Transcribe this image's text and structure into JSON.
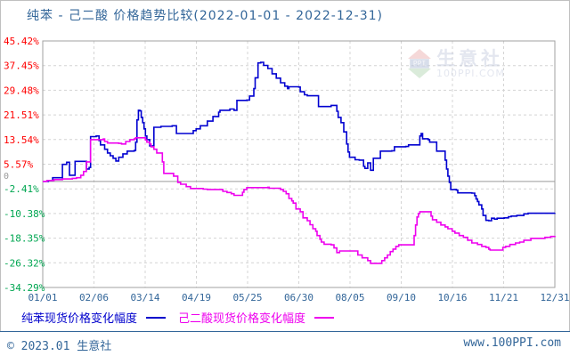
{
  "title": "纯苯 - 己二酸 价格趋势比较(2022-01-01 - 2022-12-31)",
  "watermark": {
    "logo_text": "PPI",
    "name": "生意社",
    "site": "100PPI.COM"
  },
  "legend": [
    {
      "label": "纯苯现货价格变化幅度",
      "color": "#0000cc"
    },
    {
      "label": "己二酸现货价格变化幅度",
      "color": "#ee00ee"
    }
  ],
  "footer": {
    "left": "© 2023.01 生意社",
    "right": "www.100PPI.com"
  },
  "chart_data": {
    "type": "line",
    "interpolation": "step-after",
    "title": "纯苯 - 己二酸 价格趋势比较(2022-01-01 - 2022-12-31)",
    "x_unit": "day-of-year-2022",
    "x_range": [
      1,
      365
    ],
    "ylim": [
      -34.29,
      45.42
    ],
    "grid": true,
    "zero_line": true,
    "zero_label": "0",
    "x_tick_labels": [
      "01/01",
      "02/06",
      "03/14",
      "04/19",
      "05/25",
      "06/30",
      "08/05",
      "09/10",
      "10/16",
      "11/21",
      "12/31"
    ],
    "y_ticks": [
      {
        "label": "45.42%",
        "value": 45.42,
        "color": "#ff0000"
      },
      {
        "label": "37.45%",
        "value": 37.45,
        "color": "#ff0000"
      },
      {
        "label": "29.48%",
        "value": 29.48,
        "color": "#ff0000"
      },
      {
        "label": "21.51%",
        "value": 21.51,
        "color": "#ff0000"
      },
      {
        "label": "13.54%",
        "value": 13.54,
        "color": "#ff0000"
      },
      {
        "label": "5.57%",
        "value": 5.57,
        "color": "#ff0000"
      },
      {
        "label": "-2.41%",
        "value": -2.41,
        "color": "#00a651"
      },
      {
        "label": "-10.38%",
        "value": -10.38,
        "color": "#00a651"
      },
      {
        "label": "-18.35%",
        "value": -18.35,
        "color": "#00a651"
      },
      {
        "label": "-26.32%",
        "value": -26.32,
        "color": "#00a651"
      },
      {
        "label": "-34.29%",
        "value": -34.29,
        "color": "#00a651"
      }
    ],
    "series": [
      {
        "name": "纯苯现货价格变化幅度",
        "color": "#0000d0",
        "points": [
          [
            1,
            0
          ],
          [
            5,
            0.3
          ],
          [
            8,
            1.2
          ],
          [
            13,
            1.2
          ],
          [
            15,
            5.5
          ],
          [
            18,
            6.2
          ],
          [
            20,
            2.0
          ],
          [
            24,
            6.5
          ],
          [
            30,
            6.5
          ],
          [
            32,
            4.0
          ],
          [
            34,
            4.5
          ],
          [
            35,
            14.5
          ],
          [
            39,
            14.7
          ],
          [
            41,
            13.2
          ],
          [
            42,
            11.8
          ],
          [
            45,
            10.4
          ],
          [
            47,
            9.2
          ],
          [
            49,
            8.3
          ],
          [
            51,
            7.5
          ],
          [
            53,
            6.6
          ],
          [
            55,
            7.8
          ],
          [
            58,
            8.9
          ],
          [
            61,
            9.8
          ],
          [
            66,
            10.0
          ],
          [
            67,
            12.7
          ],
          [
            68,
            19.9
          ],
          [
            69,
            23.0
          ],
          [
            70,
            22.8
          ],
          [
            71,
            20.7
          ],
          [
            72,
            19.0
          ],
          [
            73,
            17.0
          ],
          [
            74,
            14.7
          ],
          [
            75,
            13.5
          ],
          [
            77,
            11.5
          ],
          [
            80,
            17.5
          ],
          [
            85,
            17.8
          ],
          [
            93,
            18.0
          ],
          [
            96,
            15.5
          ],
          [
            105,
            15.5
          ],
          [
            108,
            16.4
          ],
          [
            110,
            17.0
          ],
          [
            113,
            18.0
          ],
          [
            118,
            19.5
          ],
          [
            122,
            21.0
          ],
          [
            126,
            22.4
          ],
          [
            127,
            23.0
          ],
          [
            134,
            23.4
          ],
          [
            137,
            23.0
          ],
          [
            139,
            26.2
          ],
          [
            146,
            26.3
          ],
          [
            148,
            27.6
          ],
          [
            151,
            30.0
          ],
          [
            152,
            33.5
          ],
          [
            154,
            38.3
          ],
          [
            156,
            38.5
          ],
          [
            158,
            37.5
          ],
          [
            161,
            36.5
          ],
          [
            164,
            34.8
          ],
          [
            167,
            33.4
          ],
          [
            170,
            31.9
          ],
          [
            173,
            30.8
          ],
          [
            175,
            30.0
          ],
          [
            176,
            30.6
          ],
          [
            183,
            30.5
          ],
          [
            184,
            29.0
          ],
          [
            187,
            28.0
          ],
          [
            189,
            27.7
          ],
          [
            196,
            27.7
          ],
          [
            197,
            24.2
          ],
          [
            205,
            24.2
          ],
          [
            206,
            24.6
          ],
          [
            210,
            22.7
          ],
          [
            211,
            20.7
          ],
          [
            213,
            19.0
          ],
          [
            215,
            16.0
          ],
          [
            217,
            12.1
          ],
          [
            218,
            9.5
          ],
          [
            219,
            7.8
          ],
          [
            223,
            7.0
          ],
          [
            226,
            6.9
          ],
          [
            229,
            4.9
          ],
          [
            230,
            4.2
          ],
          [
            232,
            6.0
          ],
          [
            234,
            3.6
          ],
          [
            236,
            7.5
          ],
          [
            240,
            7.5
          ],
          [
            241,
            9.8
          ],
          [
            249,
            9.9
          ],
          [
            251,
            11.2
          ],
          [
            259,
            11.3
          ],
          [
            261,
            11.8
          ],
          [
            268,
            11.8
          ],
          [
            269,
            14.7
          ],
          [
            270,
            15.5
          ],
          [
            271,
            13.8
          ],
          [
            275,
            13.5
          ],
          [
            276,
            12.7
          ],
          [
            280,
            12.7
          ],
          [
            281,
            9.8
          ],
          [
            285,
            9.8
          ],
          [
            287,
            6.9
          ],
          [
            288,
            4.0
          ],
          [
            289,
            1.7
          ],
          [
            290,
            -0.3
          ],
          [
            291,
            -2.6
          ],
          [
            295,
            -2.8
          ],
          [
            296,
            -3.7
          ],
          [
            306,
            -3.8
          ],
          [
            308,
            -4.6
          ],
          [
            309,
            -5.7
          ],
          [
            310,
            -6.5
          ],
          [
            311,
            -7.6
          ],
          [
            313,
            -8.9
          ],
          [
            314,
            -11.0
          ],
          [
            316,
            -12.6
          ],
          [
            318,
            -12.7
          ],
          [
            320,
            -11.9
          ],
          [
            322,
            -12.2
          ],
          [
            324,
            -11.9
          ],
          [
            329,
            -11.8
          ],
          [
            332,
            -11.4
          ],
          [
            334,
            -11.2
          ],
          [
            338,
            -11.0
          ],
          [
            343,
            -10.5
          ],
          [
            346,
            -10.3
          ],
          [
            365,
            -10.2
          ]
        ]
      },
      {
        "name": "己二酸现货价格变化幅度",
        "color": "#ee00ee",
        "points": [
          [
            1,
            0
          ],
          [
            4,
            0.3
          ],
          [
            9,
            0.6
          ],
          [
            15,
            0.8
          ],
          [
            22,
            1.0
          ],
          [
            25,
            1.2
          ],
          [
            28,
            2.0
          ],
          [
            30,
            3.2
          ],
          [
            32,
            6.3
          ],
          [
            35,
            13.5
          ],
          [
            44,
            13.7
          ],
          [
            45,
            12.9
          ],
          [
            47,
            12.4
          ],
          [
            55,
            12.3
          ],
          [
            57,
            12.1
          ],
          [
            60,
            12.9
          ],
          [
            63,
            13.5
          ],
          [
            66,
            13.8
          ],
          [
            67,
            14.1
          ],
          [
            73,
            14.1
          ],
          [
            74,
            13.4
          ],
          [
            75,
            12.7
          ],
          [
            77,
            12.1
          ],
          [
            78,
            11.2
          ],
          [
            80,
            10.4
          ],
          [
            82,
            9.2
          ],
          [
            86,
            6.3
          ],
          [
            87,
            2.6
          ],
          [
            94,
            1.7
          ],
          [
            97,
            -0.3
          ],
          [
            99,
            -0.9
          ],
          [
            103,
            -1.7
          ],
          [
            106,
            -2.3
          ],
          [
            115,
            -2.5
          ],
          [
            118,
            -2.6
          ],
          [
            129,
            -3.2
          ],
          [
            132,
            -3.6
          ],
          [
            135,
            -4.0
          ],
          [
            137,
            -4.5
          ],
          [
            142,
            -4.5
          ],
          [
            143,
            -3.5
          ],
          [
            144,
            -2.6
          ],
          [
            146,
            -2.0
          ],
          [
            161,
            -1.9
          ],
          [
            162,
            -2.2
          ],
          [
            169,
            -2.2
          ],
          [
            170,
            -2.6
          ],
          [
            172,
            -3.2
          ],
          [
            174,
            -4.0
          ],
          [
            176,
            -5.5
          ],
          [
            178,
            -6.3
          ],
          [
            179,
            -7.0
          ],
          [
            181,
            -8.9
          ],
          [
            184,
            -9.8
          ],
          [
            186,
            -11.8
          ],
          [
            189,
            -12.7
          ],
          [
            191,
            -14.0
          ],
          [
            193,
            -15.3
          ],
          [
            195,
            -16.1
          ],
          [
            196,
            -17.5
          ],
          [
            198,
            -18.7
          ],
          [
            199,
            -19.6
          ],
          [
            201,
            -20.3
          ],
          [
            206,
            -20.5
          ],
          [
            208,
            -21.5
          ],
          [
            210,
            -23.0
          ],
          [
            212,
            -22.5
          ],
          [
            223,
            -22.5
          ],
          [
            225,
            -23.8
          ],
          [
            228,
            -24.7
          ],
          [
            232,
            -25.6
          ],
          [
            234,
            -26.5
          ],
          [
            241,
            -26.5
          ],
          [
            242,
            -25.6
          ],
          [
            244,
            -24.7
          ],
          [
            246,
            -23.8
          ],
          [
            248,
            -22.7
          ],
          [
            250,
            -21.9
          ],
          [
            252,
            -21.0
          ],
          [
            254,
            -20.5
          ],
          [
            264,
            -20.5
          ],
          [
            265,
            -17.5
          ],
          [
            266,
            -14.1
          ],
          [
            267,
            -11.5
          ],
          [
            268,
            -10.4
          ],
          [
            269,
            -9.8
          ],
          [
            275,
            -9.8
          ],
          [
            277,
            -11.2
          ],
          [
            278,
            -12.4
          ],
          [
            281,
            -13.2
          ],
          [
            284,
            -14.1
          ],
          [
            287,
            -14.7
          ],
          [
            289,
            -15.3
          ],
          [
            292,
            -16.1
          ],
          [
            294,
            -16.7
          ],
          [
            297,
            -17.5
          ],
          [
            300,
            -18.1
          ],
          [
            303,
            -19.0
          ],
          [
            306,
            -19.9
          ],
          [
            310,
            -20.4
          ],
          [
            313,
            -21.0
          ],
          [
            316,
            -21.3
          ],
          [
            318,
            -21.9
          ],
          [
            319,
            -22.2
          ],
          [
            325,
            -22.2
          ],
          [
            328,
            -21.3
          ],
          [
            330,
            -21.0
          ],
          [
            333,
            -20.4
          ],
          [
            337,
            -19.9
          ],
          [
            340,
            -19.6
          ],
          [
            343,
            -19.0
          ],
          [
            348,
            -18.4
          ],
          [
            358,
            -18.1
          ],
          [
            362,
            -17.8
          ],
          [
            365,
            -17.6
          ]
        ]
      }
    ],
    "colors": {
      "grid": "#d4d4d4",
      "zero_line": "#9a9a9a",
      "plot_border": "#a0a0a0",
      "axis_text": "#336699",
      "zero_label": "#999999"
    }
  }
}
